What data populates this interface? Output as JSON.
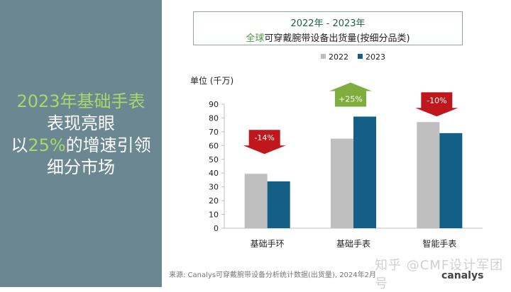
{
  "headline": {
    "line1_year": "2023年",
    "line1_highlight": "基础手表",
    "line2": "表现亮眼",
    "line3_prefix": "以",
    "line3_highlight": "25%",
    "line3_suffix": "的增速引领",
    "line4": "细分市场"
  },
  "title": {
    "line1": "2022年 - 2023年",
    "line2_highlight": "全球",
    "line2_rest": "可穿戴腕带设备出货量(按细分品类)"
  },
  "source": "来源: Canalys可穿戴腕带设备分析统计数据(出货量), 2024年2月",
  "watermark": "知乎 @CMF设计军团号",
  "brand": "canalys",
  "chart_data": {
    "type": "bar",
    "ylabel": "单位 (千万)",
    "ylim": [
      0,
      90
    ],
    "yticks": [
      0,
      10,
      20,
      30,
      40,
      50,
      60,
      70,
      80,
      90
    ],
    "grid": false,
    "legend_position": "top-right",
    "categories": [
      "基础手环",
      "基础手表",
      "智能手表"
    ],
    "series": [
      {
        "name": "2022",
        "color": "#bfbfbf",
        "values": [
          39.5,
          65,
          77
        ]
      },
      {
        "name": "2023",
        "color": "#135f86",
        "values": [
          34,
          81,
          69
        ]
      }
    ],
    "annotations": [
      {
        "category": "基础手环",
        "text": "-14%",
        "direction": "down",
        "color": "#c0171c"
      },
      {
        "category": "基础手表",
        "text": "+25%",
        "direction": "up",
        "color": "#7fae3f"
      },
      {
        "category": "智能手表",
        "text": "-10%",
        "direction": "down",
        "color": "#c0171c"
      }
    ]
  }
}
